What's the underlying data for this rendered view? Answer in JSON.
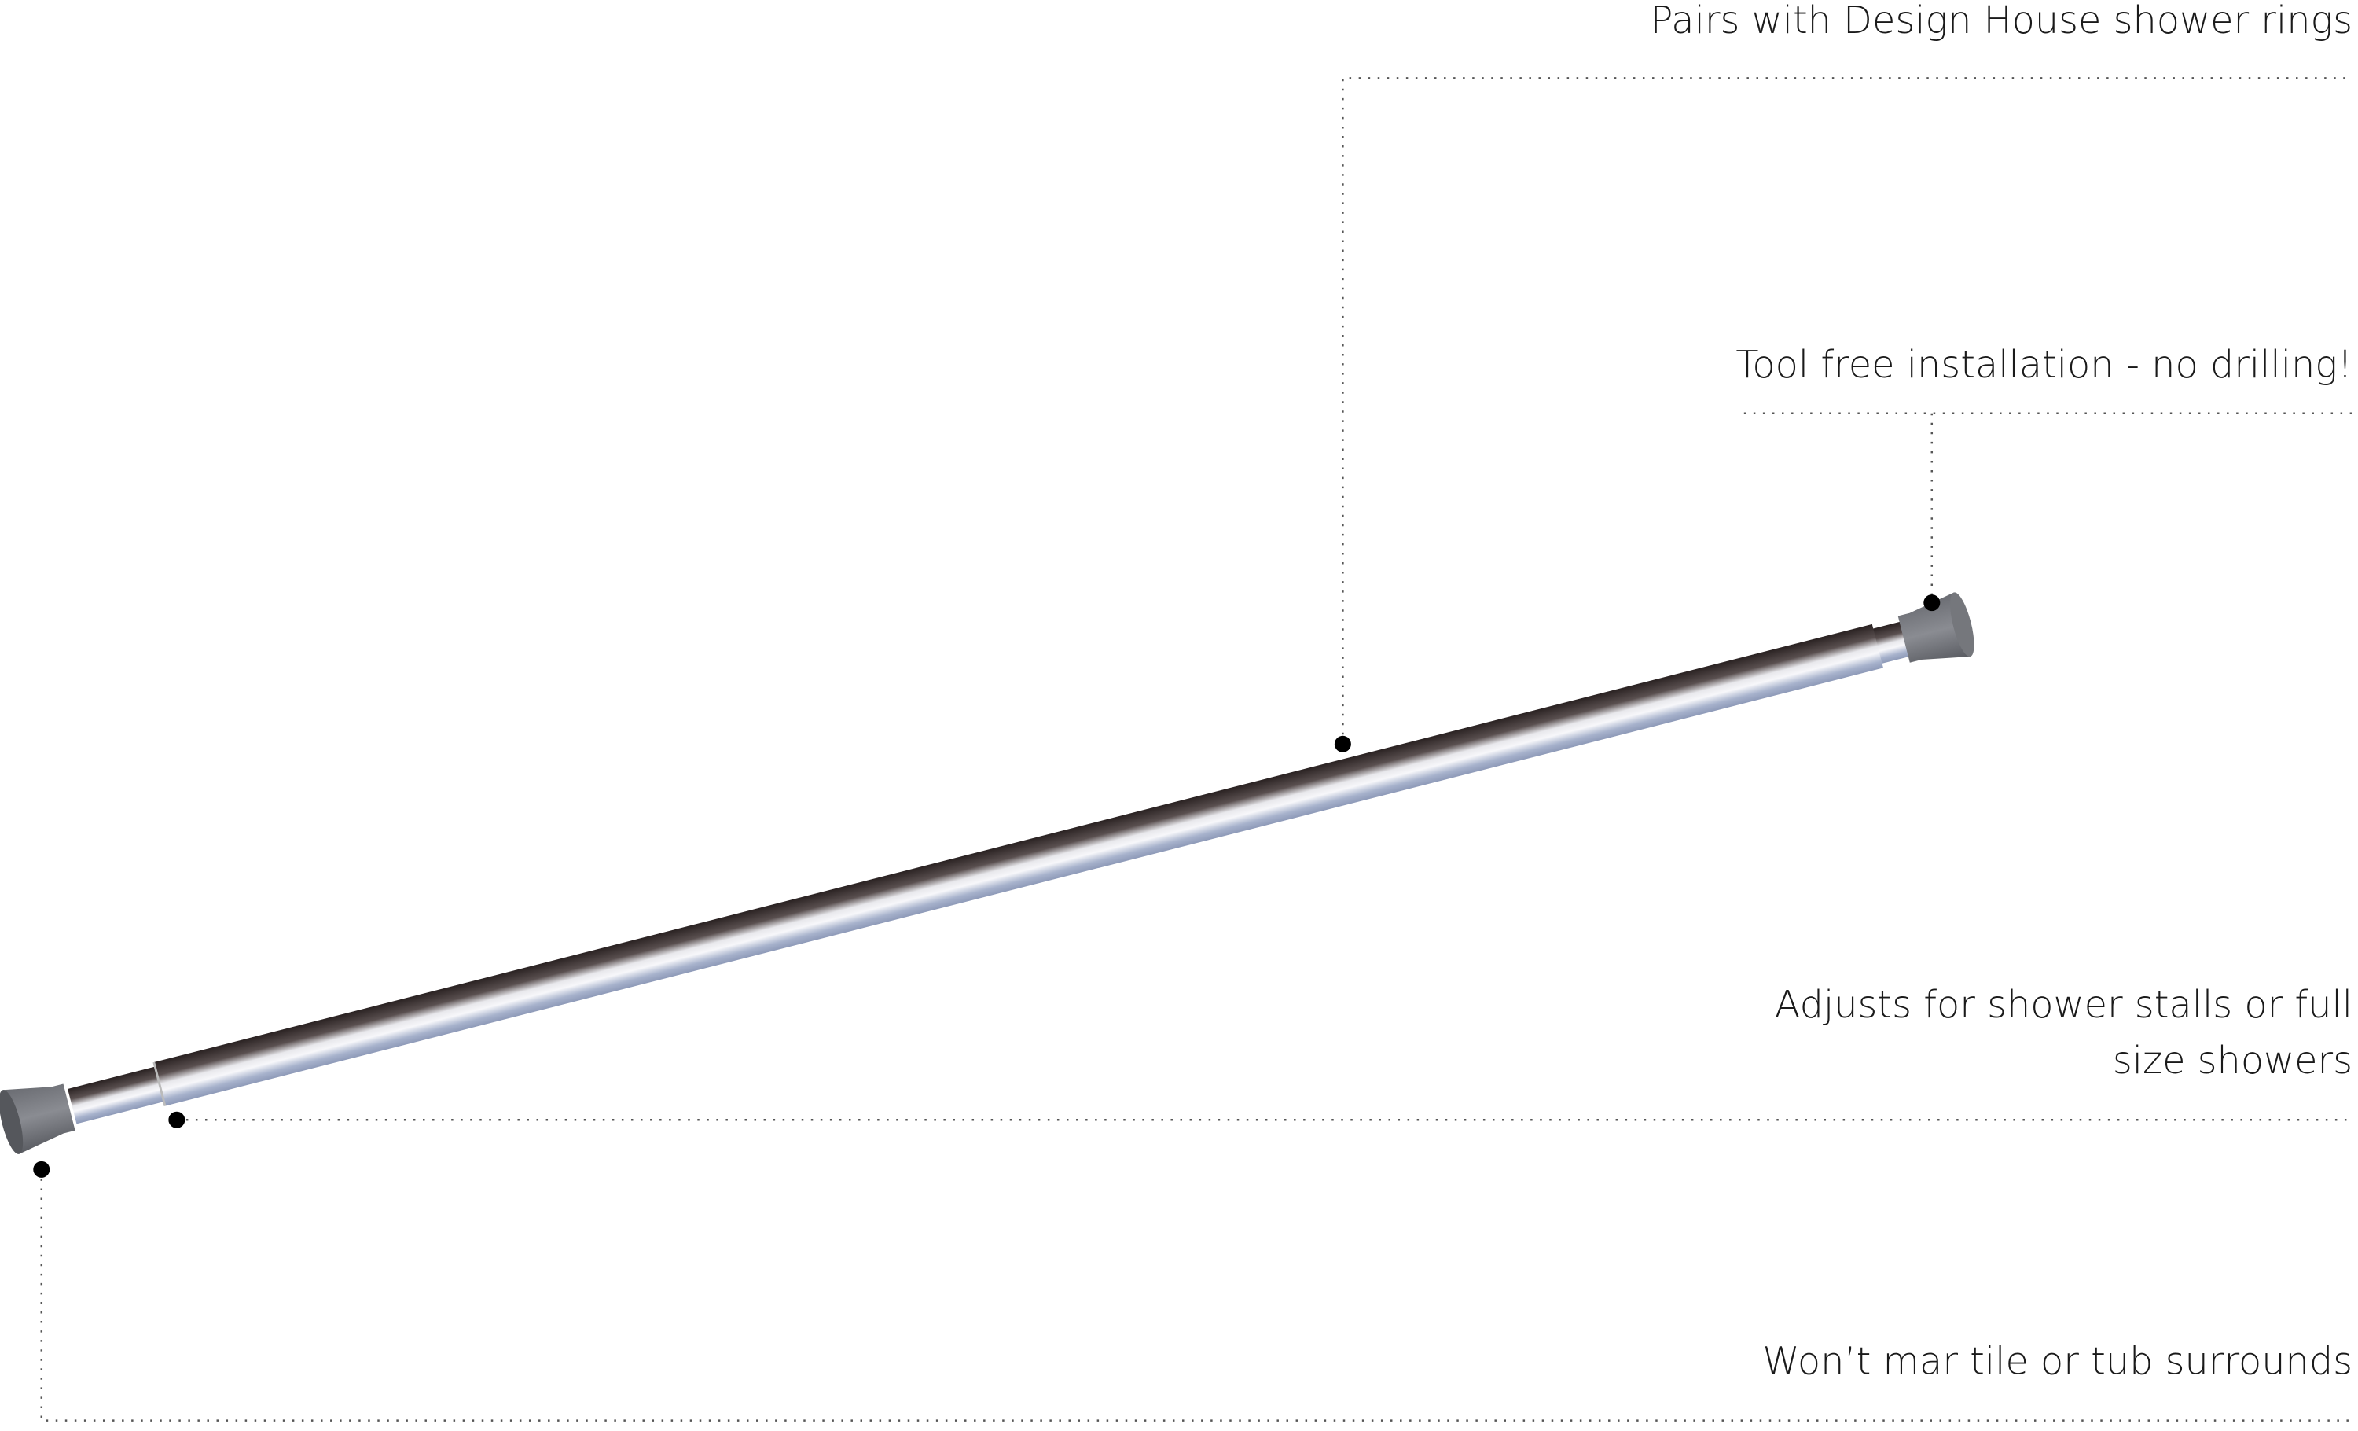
{
  "callouts": [
    {
      "lines": [
        "Pairs with Design House shower rings"
      ]
    },
    {
      "lines": [
        "Tool free installation - no drilling!"
      ]
    },
    {
      "lines": [
        "Adjusts for shower stalls or full",
        "size showers"
      ]
    },
    {
      "lines": [
        "Won’t mar tile or tub surrounds"
      ]
    }
  ]
}
